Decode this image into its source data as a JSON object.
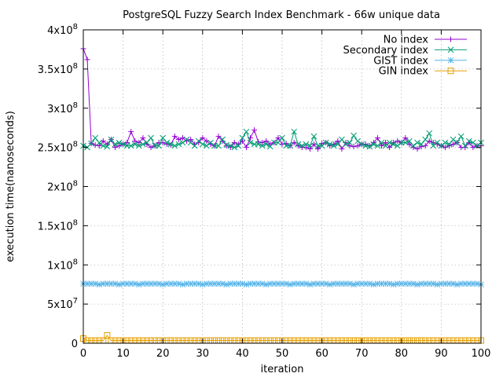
{
  "chart_data": {
    "type": "line",
    "title": "PostgreSQL Fuzzy Search Index Benchmark - 66w unique data",
    "xlabel": "iteration",
    "ylabel": "execution time(nanoseconds)",
    "xlim": [
      0,
      100
    ],
    "ylim": [
      0,
      400000000
    ],
    "grid": true,
    "legend_position": "top-right",
    "x_ticks": [
      {
        "value": 0,
        "label": "0"
      },
      {
        "value": 10,
        "label": "10"
      },
      {
        "value": 20,
        "label": "20"
      },
      {
        "value": 30,
        "label": "30"
      },
      {
        "value": 40,
        "label": "40"
      },
      {
        "value": 50,
        "label": "50"
      },
      {
        "value": 60,
        "label": "60"
      },
      {
        "value": 70,
        "label": "70"
      },
      {
        "value": 80,
        "label": "80"
      },
      {
        "value": 90,
        "label": "90"
      },
      {
        "value": 100,
        "label": "100"
      }
    ],
    "y_ticks": [
      {
        "value": 0,
        "base": "0",
        "exp": ""
      },
      {
        "value": 50000000,
        "base": "5x10",
        "exp": "7"
      },
      {
        "value": 100000000,
        "base": "1x10",
        "exp": "8"
      },
      {
        "value": 150000000,
        "base": "1.5x10",
        "exp": "8"
      },
      {
        "value": 200000000,
        "base": "2x10",
        "exp": "8"
      },
      {
        "value": 250000000,
        "base": "2.5x10",
        "exp": "8"
      },
      {
        "value": 300000000,
        "base": "3x10",
        "exp": "8"
      },
      {
        "value": 350000000,
        "base": "3.5x10",
        "exp": "8"
      },
      {
        "value": 400000000,
        "base": "4x10",
        "exp": "8"
      }
    ],
    "series": [
      {
        "name": "No index",
        "color": "#9400d3",
        "marker": "plus",
        "values": [
          376,
          362,
          255,
          253,
          252,
          258,
          254,
          260,
          250,
          252,
          254,
          256,
          270,
          258,
          256,
          262,
          254,
          250,
          252,
          256,
          256,
          254,
          253,
          264,
          260,
          262,
          258,
          260,
          254,
          256,
          262,
          258,
          254,
          252,
          264,
          258,
          252,
          250,
          256,
          254,
          258,
          250,
          262,
          272,
          257,
          256,
          258,
          254,
          256,
          262,
          254,
          255,
          252,
          256,
          252,
          250,
          250,
          248,
          254,
          248,
          255,
          256,
          252,
          254,
          258,
          248,
          256,
          252,
          251,
          252,
          254,
          254,
          252,
          256,
          262,
          252,
          256,
          250,
          256,
          258,
          256,
          262,
          254,
          250,
          248,
          251,
          252,
          258,
          256,
          254,
          252,
          250,
          252,
          254,
          256,
          250,
          250,
          256,
          250,
          252,
          252
        ]
      },
      {
        "name": "Secondary index",
        "color": "#009e73",
        "marker": "cross",
        "values": [
          252,
          250,
          255,
          262,
          256,
          252,
          251,
          260,
          254,
          256,
          254,
          252,
          252,
          254,
          252,
          254,
          256,
          262,
          252,
          252,
          262,
          256,
          254,
          252,
          254,
          256,
          260,
          256,
          252,
          258,
          254,
          252,
          256,
          252,
          252,
          260,
          253,
          252,
          250,
          252,
          262,
          270,
          256,
          254,
          254,
          252,
          254,
          251,
          256,
          256,
          262,
          252,
          252,
          270,
          254,
          252,
          254,
          252,
          264,
          252,
          252,
          256,
          254,
          252,
          254,
          260,
          254,
          256,
          265,
          258,
          254,
          252,
          251,
          254,
          252,
          256,
          252,
          256,
          254,
          252,
          256,
          256,
          258,
          252,
          256,
          254,
          260,
          268,
          252,
          256,
          252,
          256,
          254,
          260,
          256,
          264,
          252,
          258,
          256,
          252,
          256
        ]
      },
      {
        "name": "GIST index",
        "color": "#56b4e9",
        "marker": "star",
        "values": [
          76,
          76,
          76,
          76,
          75,
          76,
          76,
          76,
          76,
          75,
          76,
          76,
          76,
          76,
          75,
          76,
          76,
          76,
          76,
          76,
          75,
          76,
          76,
          76,
          76,
          75,
          76,
          76,
          76,
          76,
          75,
          76,
          76,
          76,
          76,
          76,
          75,
          76,
          76,
          76,
          76,
          75,
          76,
          76,
          76,
          76,
          75,
          76,
          76,
          76,
          76,
          76,
          75,
          76,
          76,
          76,
          76,
          75,
          76,
          76,
          76,
          76,
          75,
          76,
          76,
          76,
          76,
          76,
          75,
          76,
          76,
          76,
          76,
          75,
          76,
          76,
          76,
          76,
          75,
          76,
          76,
          76,
          76,
          76,
          75,
          76,
          76,
          76,
          76,
          75,
          76,
          76,
          76,
          76,
          75,
          76,
          76,
          76,
          76,
          76,
          75
        ]
      },
      {
        "name": "GIN index",
        "color": "#e69f00",
        "marker": "box",
        "values": [
          6,
          3.5,
          3.5,
          3.5,
          3.5,
          3.5,
          10,
          3.5,
          3.5,
          3.5,
          3.5,
          3.5,
          3.5,
          3.5,
          3.5,
          3.5,
          3.5,
          3.5,
          3.5,
          3.5,
          3.5,
          3.5,
          3.5,
          3.5,
          3.5,
          3.5,
          3.5,
          3.5,
          3.5,
          3.5,
          3.5,
          3.5,
          3.5,
          3.5,
          3.5,
          3.5,
          3.5,
          3.5,
          3.5,
          3.5,
          3.5,
          3.5,
          3.5,
          3.5,
          3.5,
          3.5,
          3.5,
          3.5,
          3.5,
          3.5,
          3.5,
          3.5,
          3.5,
          3.5,
          3.5,
          3.5,
          3.5,
          3.5,
          3.5,
          3.5,
          3.5,
          3.5,
          3.5,
          3.5,
          3.5,
          3.5,
          3.5,
          3.5,
          3.5,
          3.5,
          3.5,
          3.5,
          3.5,
          3.5,
          3.5,
          3.5,
          3.5,
          3.5,
          3.5,
          3.5,
          3.5,
          3.5,
          3.5,
          3.5,
          3.5,
          3.5,
          3.5,
          3.5,
          3.5,
          3.5,
          3.5,
          3.5,
          3.5,
          3.5,
          3.5,
          3.5,
          3.5,
          3.5,
          3.5,
          3.5,
          3.5
        ]
      }
    ],
    "value_scale": 1000000
  }
}
